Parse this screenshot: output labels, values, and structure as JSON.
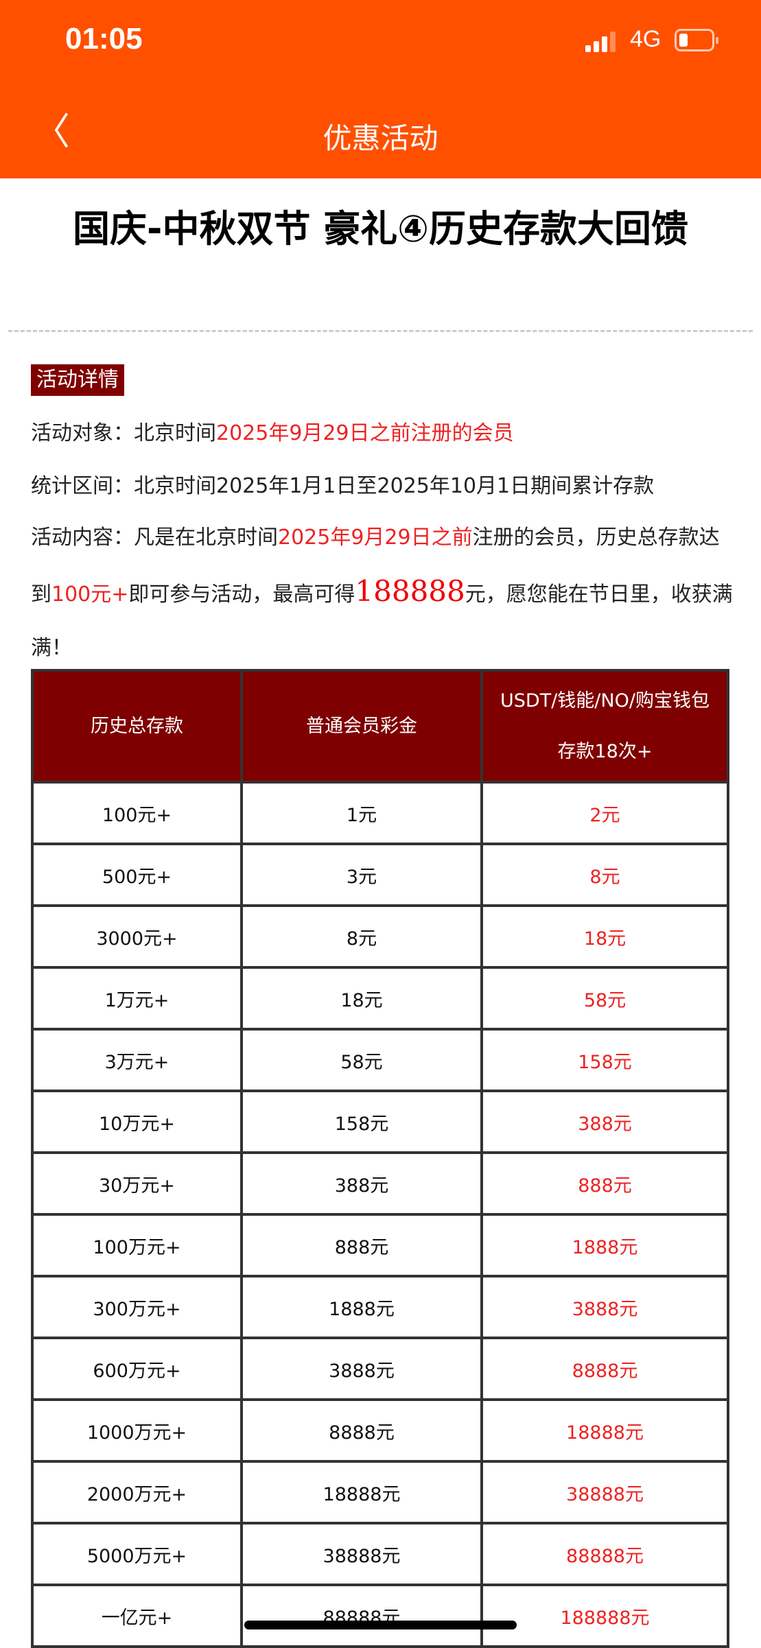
{
  "status": {
    "time": "01:05",
    "network": "4G",
    "signal_bars": 3,
    "battery_level": 0.2
  },
  "nav": {
    "title": "优惠活动"
  },
  "title": "国庆-中秋双节 豪礼④历史存款大回馈",
  "section_tag": "活动详情",
  "details": {
    "target_label": "活动对象：北京时间",
    "target_red": "2025年9月29日之前注册的会员",
    "period": "统计区间：北京时间2025年1月1日至2025年10月1日期间累计存款",
    "content_1": "活动内容：凡是在北京时间",
    "content_red1": "2025年9月29日之前",
    "content_2": "注册的会员，历史总存款达到",
    "content_red2": "100元+",
    "content_3": "即可参与活动，最高可得",
    "content_big": "188888",
    "content_4": "元，愿您能在节日里，收获满满！"
  },
  "table": {
    "headers": [
      "历史总存款",
      "普通会员彩金",
      "USDT/钱能/NO/购宝钱包存款18次+"
    ],
    "rows": [
      [
        "100元+",
        "1元",
        "2元"
      ],
      [
        "500元+",
        "3元",
        "8元"
      ],
      [
        "3000元+",
        "8元",
        "18元"
      ],
      [
        "1万元+",
        "18元",
        "58元"
      ],
      [
        "3万元+",
        "58元",
        "158元"
      ],
      [
        "10万元+",
        "158元",
        "388元"
      ],
      [
        "30万元+",
        "388元",
        "888元"
      ],
      [
        "100万元+",
        "888元",
        "1888元"
      ],
      [
        "300万元+",
        "1888元",
        "3888元"
      ],
      [
        "600万元+",
        "3888元",
        "8888元"
      ],
      [
        "1000万元+",
        "8888元",
        "18888元"
      ],
      [
        "2000万元+",
        "18888元",
        "38888元"
      ],
      [
        "5000万元+",
        "38888元",
        "88888元"
      ],
      [
        "一亿元+",
        "88888元",
        "188888元"
      ]
    ]
  }
}
